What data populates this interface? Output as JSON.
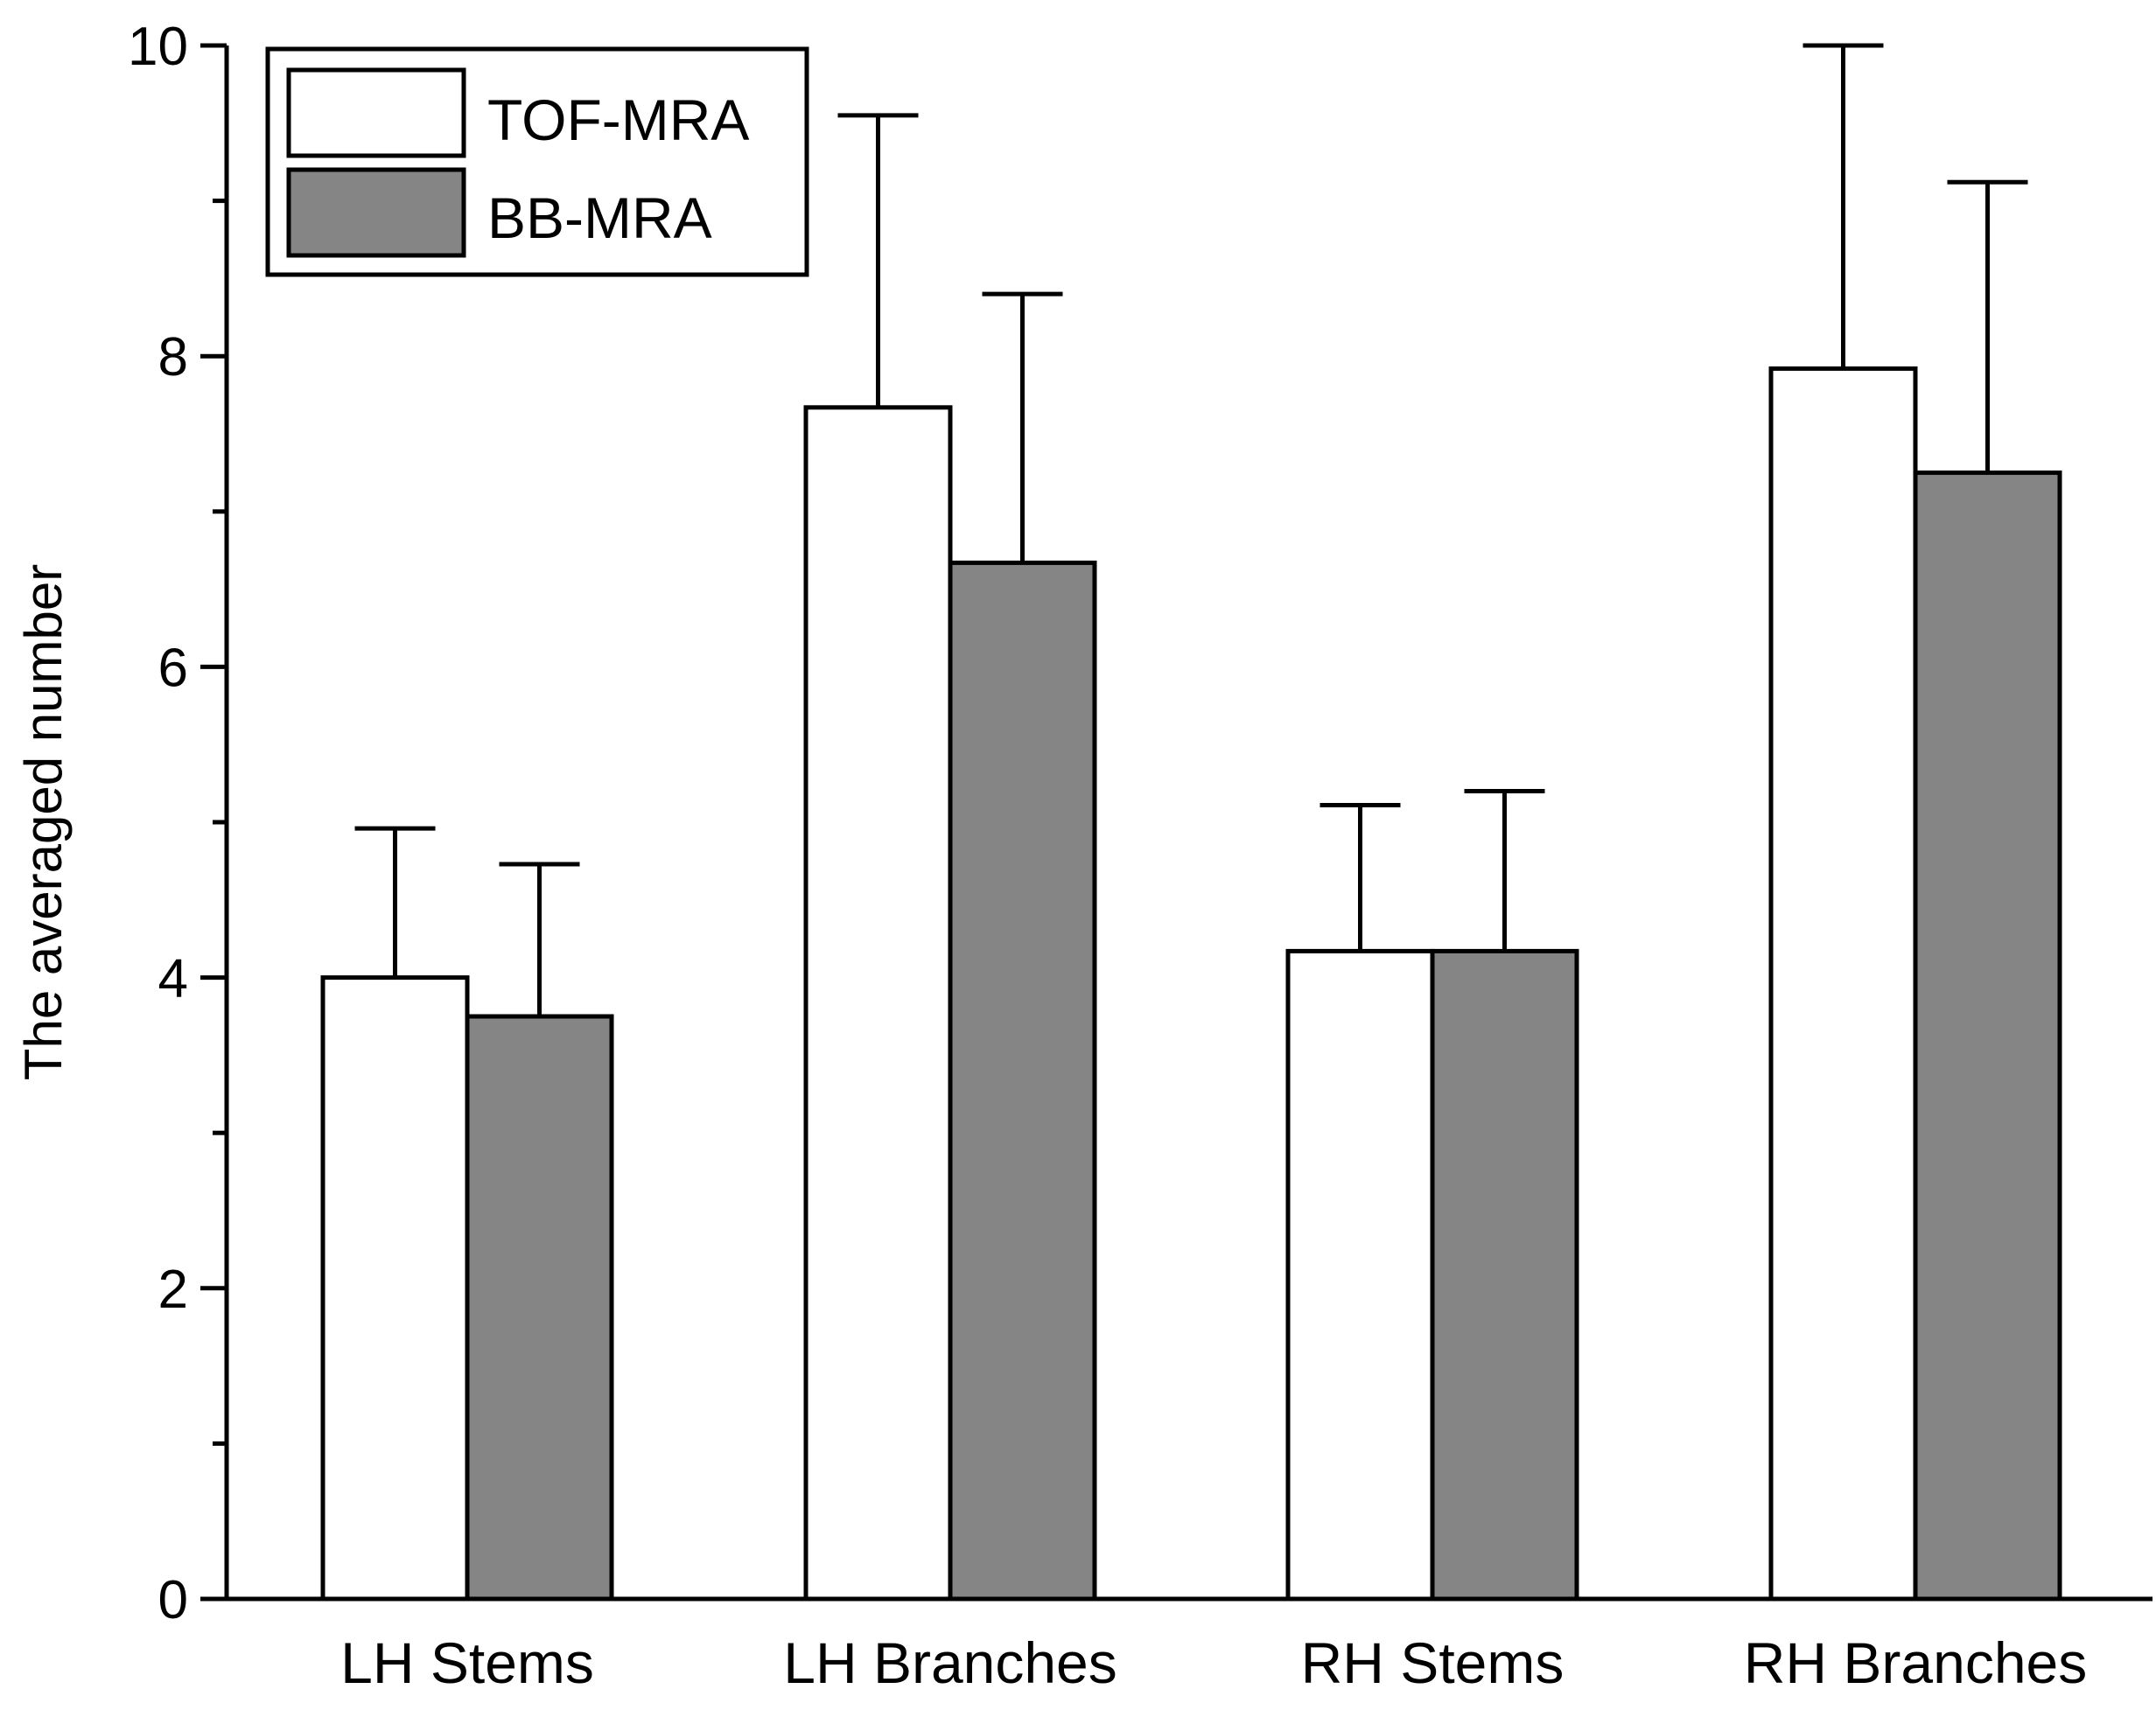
{
  "chart_data": {
    "type": "bar",
    "ylabel": "The averaged number",
    "xlabel": "",
    "ylim": [
      0,
      10
    ],
    "y_ticks": [
      0,
      2,
      4,
      6,
      8,
      10
    ],
    "y_minor_ticks": [
      1,
      3,
      5,
      7,
      9
    ],
    "y_tick_labels": [
      "0",
      "2",
      "4",
      "6",
      "8",
      "10"
    ],
    "categories": [
      "LH Stems",
      "LH Branches",
      "RH Stems",
      "RH Branches"
    ],
    "series": [
      {
        "name": "TOF-MRA",
        "color": "#ffffff",
        "values": [
          4.0,
          7.67,
          4.17,
          7.92
        ],
        "error_upper": [
          0.96,
          1.88,
          0.94,
          2.08
        ]
      },
      {
        "name": "BB-MRA",
        "color": "#858585",
        "values": [
          3.75,
          6.67,
          4.17,
          7.25
        ],
        "error_upper": [
          0.98,
          1.73,
          1.03,
          1.87
        ]
      }
    ],
    "legend": {
      "placement": "top-left",
      "entries": [
        "TOF-MRA",
        "BB-MRA"
      ]
    },
    "grid": false,
    "edge_color": "#000000"
  }
}
